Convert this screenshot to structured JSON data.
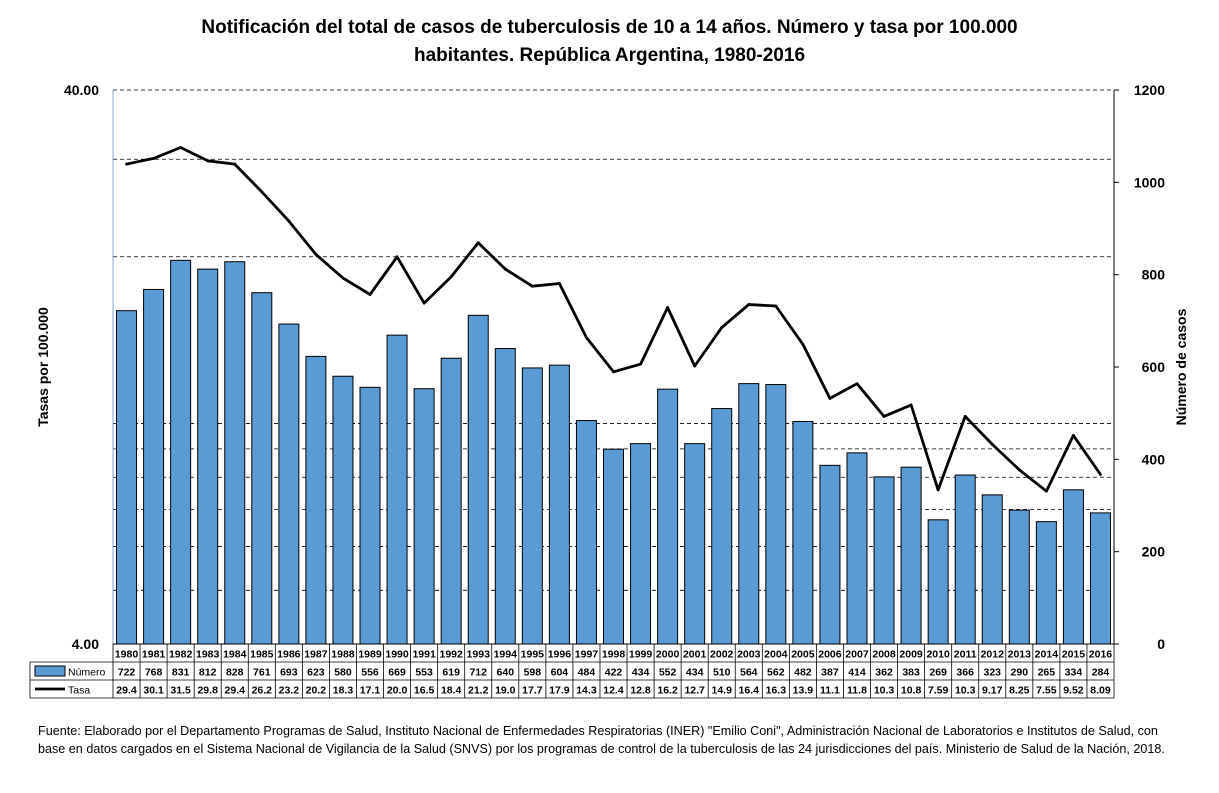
{
  "chart_data": {
    "type": "bar",
    "title_lines": [
      "Notificación del total de casos de tuberculosis de 10 a 14 años. Número y tasa por 100.000",
      "habitantes. República Argentina, 1980-2016"
    ],
    "categories": [
      "1980",
      "1981",
      "1982",
      "1983",
      "1984",
      "1985",
      "1986",
      "1987",
      "1988",
      "1989",
      "1990",
      "1991",
      "1992",
      "1993",
      "1994",
      "1995",
      "1996",
      "1997",
      "1998",
      "1999",
      "2000",
      "2001",
      "2002",
      "2003",
      "2004",
      "2005",
      "2006",
      "2007",
      "2008",
      "2009",
      "2010",
      "2011",
      "2012",
      "2013",
      "2014",
      "2015",
      "2016"
    ],
    "series": [
      {
        "name": "Número",
        "type": "bar",
        "axis": "right",
        "color": "#5b9bd5",
        "values": [
          722,
          768,
          831,
          812,
          828,
          761,
          693,
          623,
          580,
          556,
          669,
          553,
          619,
          712,
          640,
          598,
          604,
          484,
          422,
          434,
          552,
          434,
          510,
          564,
          562,
          482,
          387,
          414,
          362,
          383,
          269,
          366,
          323,
          290,
          265,
          334,
          284
        ],
        "labels": [
          "722",
          "768",
          "831",
          "812",
          "828",
          "761",
          "693",
          "623",
          "580",
          "556",
          "669",
          "553",
          "619",
          "712",
          "640",
          "598",
          "604",
          "484",
          "422",
          "434",
          "552",
          "434",
          "510",
          "564",
          "562",
          "482",
          "387",
          "414",
          "362",
          "383",
          "269",
          "366",
          "323",
          "290",
          "265",
          "334",
          "284"
        ]
      },
      {
        "name": "Tasa",
        "type": "line",
        "axis": "left",
        "color": "#000000",
        "values": [
          29.4,
          30.1,
          31.5,
          29.8,
          29.4,
          26.2,
          23.2,
          20.2,
          18.3,
          17.1,
          20.0,
          16.5,
          18.4,
          21.2,
          19.0,
          17.7,
          17.9,
          14.3,
          12.4,
          12.8,
          16.2,
          12.7,
          14.9,
          16.4,
          16.3,
          13.9,
          11.1,
          11.8,
          10.3,
          10.8,
          7.59,
          10.3,
          9.17,
          8.25,
          7.55,
          9.52,
          8.09
        ],
        "labels": [
          "29.4",
          "30.1",
          "31.5",
          "29.8",
          "29.4",
          "26.2",
          "23.2",
          "20.2",
          "18.3",
          "17.1",
          "20.0",
          "16.5",
          "18.4",
          "21.2",
          "19.0",
          "17.7",
          "17.9",
          "14.3",
          "12.4",
          "12.8",
          "16.2",
          "12.7",
          "14.9",
          "16.4",
          "16.3",
          "13.9",
          "11.1",
          "11.8",
          "10.3",
          "10.8",
          "7.59",
          "10.3",
          "9.17",
          "8.25",
          "7.55",
          "9.52",
          "8.09"
        ]
      }
    ],
    "y_left": {
      "label": "Tasas por 100.000",
      "scale": "log",
      "range": [
        4,
        40
      ],
      "tick_labels": [
        "4.00",
        "40.00"
      ]
    },
    "y_right": {
      "label": "Número de casos",
      "range": [
        0,
        1200
      ],
      "ticks": [
        0,
        200,
        400,
        600,
        800,
        1000,
        1200
      ],
      "tick_labels": [
        "0",
        "200",
        "400",
        "600",
        "800",
        "1000",
        "1200"
      ]
    },
    "grid": "dashed horizontal (left log scale)",
    "legend": "data table below plot"
  },
  "footnote": "Fuente: Elaborado por el Departamento Programas de Salud, Instituto Nacional de Enfermedades Respiratorias (INER) \"Emilio Coni\", Administración Nacional de Laboratorios e Institutos de Salud, con base en datos cargados  en el Sistema Nacional de Vigilancia de la Salud (SNVS) por los programas de control de la tuberculosis de las 24  jurisdicciones del país. Ministerio de Salud de la Nación, 2018."
}
